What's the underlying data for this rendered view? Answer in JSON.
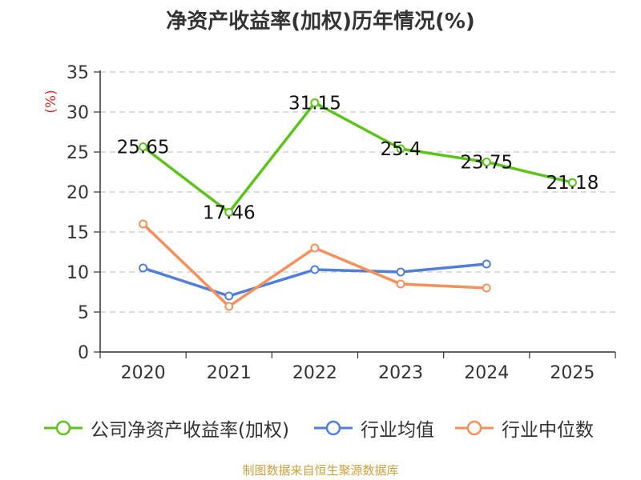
{
  "chart_data": {
    "type": "line",
    "title": "净资产收益率(加权)历年情况(%)",
    "ylabel": "(%)",
    "xlabel": "",
    "categories": [
      "2020",
      "2021",
      "2022",
      "2023",
      "2024",
      "2025"
    ],
    "ylim": [
      0,
      35
    ],
    "yticks": [
      0,
      5,
      10,
      15,
      20,
      25,
      30,
      35
    ],
    "grid": true,
    "legend_position": "bottom",
    "series": [
      {
        "name": "公司净资产收益率(加权)",
        "color": "#5cc31a",
        "values": [
          25.65,
          17.46,
          31.15,
          25.4,
          23.75,
          21.18
        ],
        "labels": [
          "25.65",
          "17.46",
          "31.15",
          "25.4",
          "23.75",
          "21.18"
        ]
      },
      {
        "name": "行业均值",
        "color": "#4f7fdb",
        "values": [
          10.5,
          7.0,
          10.3,
          10.0,
          11.0,
          null
        ]
      },
      {
        "name": "行业中位数",
        "color": "#f68f5a",
        "values": [
          16.0,
          5.7,
          13.0,
          8.5,
          8.0,
          null
        ]
      }
    ],
    "source": "制图数据来自恒生聚源数据库"
  }
}
